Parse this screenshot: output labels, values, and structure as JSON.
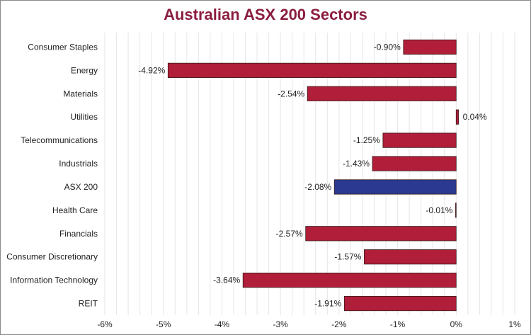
{
  "chart_data": {
    "type": "bar",
    "orientation": "horizontal",
    "title": "Australian ASX 200 Sectors",
    "xlabel": "",
    "ylabel": "",
    "categories": [
      "Consumer Staples",
      "Energy",
      "Materials",
      "Utilities",
      "Telecommunications",
      "Industrials",
      "ASX 200",
      "Health Care",
      "Financials",
      "Consumer Discretionary",
      "Information Technology",
      "REIT"
    ],
    "values": [
      -0.9,
      -4.92,
      -2.54,
      0.04,
      -1.25,
      -1.43,
      -2.08,
      -0.01,
      -2.57,
      -1.57,
      -3.64,
      -1.91
    ],
    "data_labels": [
      "-0.90%",
      "-4.92%",
      "-2.54%",
      "0.04%",
      "-1.25%",
      "-1.43%",
      "-2.08%",
      "-0.01%",
      "-2.57%",
      "-1.57%",
      "-3.64%",
      "-1.91%"
    ],
    "xlim": [
      -6,
      1
    ],
    "x_ticks": [
      -6,
      -5,
      -4,
      -3,
      -2,
      -1,
      0,
      1
    ],
    "x_tick_labels": [
      "-6%",
      "-5%",
      "-4%",
      "-3%",
      "-2%",
      "-1%",
      "0%",
      "1%"
    ],
    "grid": "vertical minor lines",
    "legend": "none",
    "colors": {
      "bar": "#b01e3a",
      "highlight_bar": "#2b3990",
      "highlight_category": "ASX 200",
      "title": "#8b1e3f",
      "grid": "#e6e6e6",
      "bar_border": "#3a1a1a"
    }
  }
}
